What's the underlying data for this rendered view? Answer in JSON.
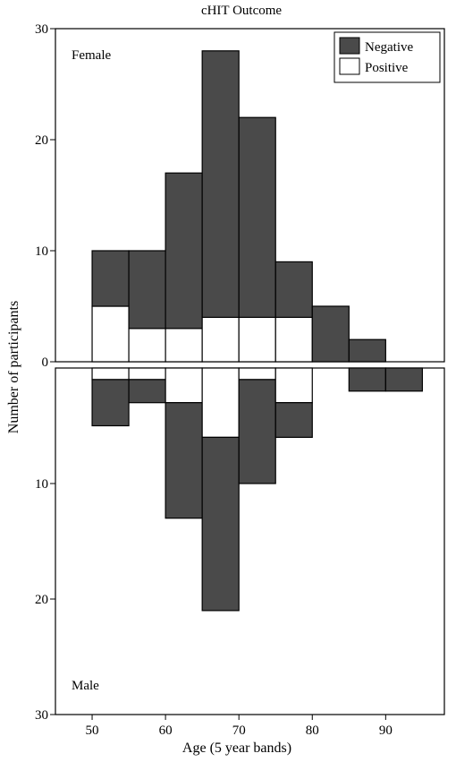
{
  "chart_data": {
    "type": "bar",
    "title": "cHIT Outcome",
    "xlabel": "Age (5 year bands)",
    "ylabel": "Number of participants",
    "xlim": [
      45,
      98
    ],
    "x_ticks": [
      50,
      60,
      70,
      80,
      90
    ],
    "bin_width": 5,
    "stacked": true,
    "colors": {
      "Negative": "#4a4a4a",
      "Positive": "#ffffff",
      "edge": "#000000"
    },
    "legend": {
      "position": "top-right",
      "entries": [
        "Negative",
        "Positive"
      ]
    },
    "panels": [
      {
        "label": "Female",
        "direction": "up",
        "ylim": [
          0,
          30
        ],
        "y_ticks": [
          0,
          10,
          20,
          30
        ],
        "bin_starts": [
          50,
          55,
          60,
          65,
          70,
          75,
          80,
          85
        ],
        "series": [
          {
            "name": "Positive",
            "values": [
              5,
              3,
              3,
              4,
              4,
              4,
              0,
              0
            ]
          },
          {
            "name": "Negative",
            "values": [
              5,
              7,
              14,
              24,
              18,
              5,
              5,
              2
            ]
          }
        ]
      },
      {
        "label": "Male",
        "direction": "down",
        "ylim": [
          0,
          30
        ],
        "y_ticks": [
          10,
          20,
          30
        ],
        "bin_starts": [
          50,
          55,
          60,
          65,
          70,
          75,
          85,
          90
        ],
        "series": [
          {
            "name": "Positive",
            "values": [
              1,
              1,
              3,
              6,
              1,
              3,
              0,
              0
            ]
          },
          {
            "name": "Negative",
            "values": [
              4,
              2,
              10,
              15,
              9,
              3,
              2,
              2
            ]
          }
        ]
      }
    ]
  }
}
